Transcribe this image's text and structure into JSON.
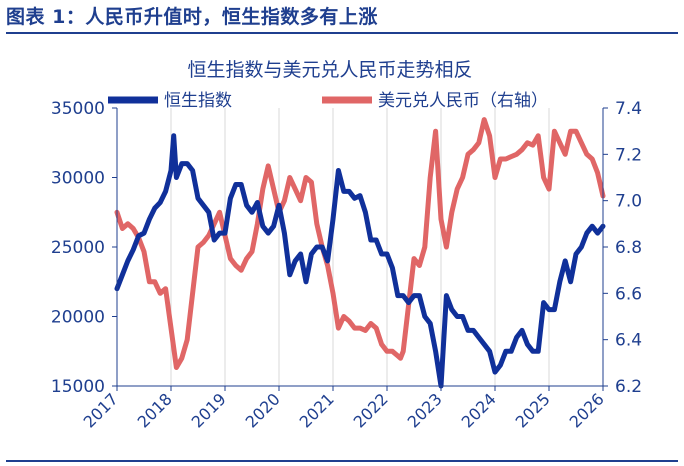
{
  "figure_title": "图表 1：人民币升值时，恒生指数多有上涨",
  "chart_data": {
    "type": "line",
    "title": "恒生指数与美元兑人民币走势相反",
    "xlabel": "",
    "ylabel": "",
    "y2label": "",
    "x_ticks": [
      "2017",
      "2018",
      "2019",
      "2020",
      "2021",
      "2022",
      "2023",
      "2024",
      "2025",
      "2026"
    ],
    "y_ticks": [
      "35000",
      "30000",
      "25000",
      "20000",
      "15000"
    ],
    "y2_ticks": [
      "7.4",
      "7.2",
      "7.0",
      "6.8",
      "6.6",
      "6.4",
      "6.2"
    ],
    "ylim": [
      15000,
      35000
    ],
    "y2lim": [
      6.2,
      7.4
    ],
    "xlim": [
      2017,
      2026
    ],
    "legend_position": "top",
    "colors": {
      "hsi": "#10309a",
      "usdcny": "#e06666",
      "axis": "#1f3f8f"
    },
    "series": [
      {
        "name": "恒生指数",
        "axis": "left",
        "x": [
          2017.0,
          2017.1,
          2017.2,
          2017.3,
          2017.4,
          2017.5,
          2017.6,
          2017.7,
          2017.8,
          2017.9,
          2018.0,
          2018.05,
          2018.1,
          2018.2,
          2018.3,
          2018.4,
          2018.5,
          2018.6,
          2018.7,
          2018.8,
          2018.9,
          2019.0,
          2019.1,
          2019.2,
          2019.3,
          2019.4,
          2019.5,
          2019.6,
          2019.7,
          2019.8,
          2019.9,
          2020.0,
          2020.1,
          2020.2,
          2020.3,
          2020.4,
          2020.5,
          2020.6,
          2020.7,
          2020.8,
          2020.9,
          2021.0,
          2021.1,
          2021.2,
          2021.3,
          2021.4,
          2021.5,
          2021.6,
          2021.7,
          2021.8,
          2021.9,
          2022.0,
          2022.1,
          2022.2,
          2022.3,
          2022.4,
          2022.5,
          2022.6,
          2022.7,
          2022.8,
          2022.9,
          2023.0,
          2023.1,
          2023.2,
          2023.3,
          2023.4,
          2023.5,
          2023.6,
          2023.7,
          2023.8,
          2023.9,
          2024.0,
          2024.1,
          2024.2,
          2024.3,
          2024.4,
          2024.5,
          2024.6,
          2024.7,
          2024.8,
          2024.9,
          2025.0,
          2025.1,
          2025.2,
          2025.3,
          2025.4,
          2025.5,
          2025.6,
          2025.7,
          2025.8,
          2025.9,
          2026.0
        ],
        "values": [
          22000,
          23000,
          24000,
          24800,
          25800,
          26000,
          27000,
          27800,
          28200,
          29000,
          30500,
          33000,
          30000,
          31000,
          31000,
          30500,
          28500,
          28000,
          27500,
          25500,
          26000,
          26000,
          28500,
          29500,
          29500,
          28000,
          27500,
          28200,
          26500,
          26000,
          26500,
          28000,
          26000,
          23000,
          24000,
          24500,
          22500,
          24500,
          25000,
          25000,
          24000,
          27000,
          30500,
          29000,
          29000,
          28500,
          28700,
          27500,
          25500,
          25500,
          24500,
          24500,
          23500,
          21500,
          21500,
          21000,
          21500,
          21500,
          20000,
          19500,
          17500,
          15000,
          21500,
          20500,
          20000,
          20000,
          19000,
          19000,
          18500,
          18000,
          17500,
          16000,
          16500,
          17500,
          17500,
          18500,
          19000,
          18000,
          17500,
          17500,
          21000,
          20500,
          20500,
          22500,
          24000,
          22500,
          24500,
          25000,
          26000,
          26500,
          26000,
          26500
        ]
      },
      {
        "name": "美元兑人民币（右轴）",
        "axis": "right",
        "x": [
          2017.0,
          2017.1,
          2017.2,
          2017.3,
          2017.4,
          2017.5,
          2017.6,
          2017.7,
          2017.8,
          2017.9,
          2018.0,
          2018.1,
          2018.2,
          2018.3,
          2018.4,
          2018.5,
          2018.6,
          2018.7,
          2018.8,
          2018.9,
          2019.0,
          2019.1,
          2019.2,
          2019.3,
          2019.4,
          2019.5,
          2019.6,
          2019.7,
          2019.8,
          2019.9,
          2020.0,
          2020.1,
          2020.2,
          2020.3,
          2020.4,
          2020.5,
          2020.6,
          2020.7,
          2020.8,
          2020.9,
          2021.0,
          2021.1,
          2021.2,
          2021.3,
          2021.4,
          2021.5,
          2021.6,
          2021.7,
          2021.8,
          2021.9,
          2022.0,
          2022.1,
          2022.2,
          2022.25,
          2022.3,
          2022.4,
          2022.5,
          2022.6,
          2022.7,
          2022.8,
          2022.9,
          2023.0,
          2023.1,
          2023.2,
          2023.3,
          2023.4,
          2023.5,
          2023.6,
          2023.7,
          2023.8,
          2023.9,
          2024.0,
          2024.1,
          2024.2,
          2024.3,
          2024.4,
          2024.5,
          2024.6,
          2024.7,
          2024.8,
          2024.9,
          2025.0,
          2025.1,
          2025.2,
          2025.3,
          2025.4,
          2025.5,
          2025.6,
          2025.7,
          2025.8,
          2025.9,
          2026.0
        ],
        "values": [
          6.95,
          6.88,
          6.9,
          6.88,
          6.84,
          6.78,
          6.65,
          6.65,
          6.6,
          6.62,
          6.45,
          6.28,
          6.32,
          6.4,
          6.6,
          6.8,
          6.82,
          6.85,
          6.9,
          6.95,
          6.85,
          6.75,
          6.72,
          6.7,
          6.75,
          6.78,
          6.9,
          7.05,
          7.15,
          7.05,
          6.95,
          7.0,
          7.1,
          7.05,
          7.0,
          7.1,
          7.08,
          6.9,
          6.8,
          6.72,
          6.6,
          6.45,
          6.5,
          6.48,
          6.45,
          6.45,
          6.44,
          6.47,
          6.45,
          6.38,
          6.35,
          6.35,
          6.33,
          6.32,
          6.35,
          6.55,
          6.75,
          6.72,
          6.8,
          7.1,
          7.3,
          6.92,
          6.8,
          6.95,
          7.05,
          7.1,
          7.2,
          7.22,
          7.25,
          7.35,
          7.28,
          7.1,
          7.18,
          7.18,
          7.19,
          7.2,
          7.22,
          7.25,
          7.24,
          7.28,
          7.1,
          7.05,
          7.3,
          7.25,
          7.2,
          7.3,
          7.3,
          7.25,
          7.2,
          7.18,
          7.12,
          7.02
        ]
      }
    ]
  }
}
